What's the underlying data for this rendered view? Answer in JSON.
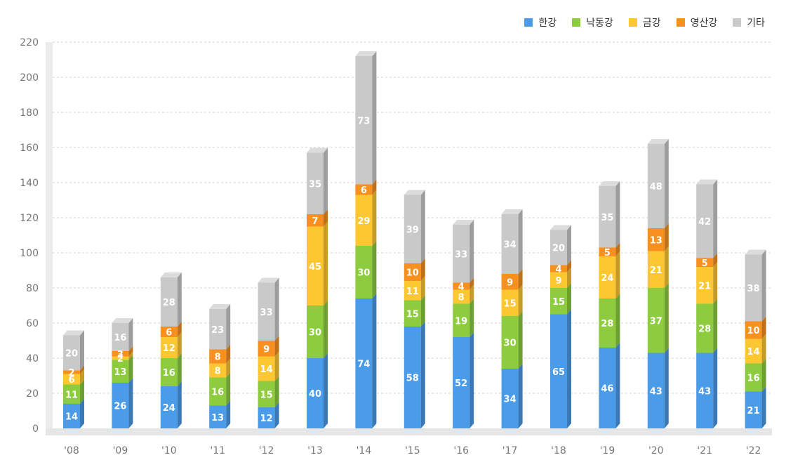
{
  "chart_data": {
    "type": "bar",
    "stacked": true,
    "categories": [
      "'08",
      "'09",
      "'10",
      "'11",
      "'12",
      "'13",
      "'14",
      "'15",
      "'16",
      "'17",
      "'18",
      "'19",
      "'20",
      "'21",
      "'22"
    ],
    "series": [
      {
        "name": "한강",
        "color": "#4a9be8",
        "values": [
          14,
          26,
          24,
          13,
          12,
          40,
          74,
          58,
          52,
          34,
          65,
          46,
          43,
          43,
          21
        ]
      },
      {
        "name": "낙동강",
        "color": "#8dcc3f",
        "values": [
          11,
          13,
          16,
          16,
          15,
          30,
          30,
          15,
          19,
          30,
          15,
          28,
          37,
          28,
          16
        ]
      },
      {
        "name": "금강",
        "color": "#fcc731",
        "values": [
          6,
          2,
          12,
          8,
          14,
          45,
          29,
          11,
          8,
          15,
          9,
          24,
          21,
          21,
          14
        ]
      },
      {
        "name": "영산강",
        "color": "#f7901e",
        "values": [
          2,
          3,
          6,
          8,
          9,
          7,
          6,
          10,
          4,
          9,
          4,
          5,
          13,
          5,
          10
        ]
      },
      {
        "name": "기타",
        "color": "#c9c9c9",
        "values": [
          20,
          16,
          28,
          23,
          33,
          35,
          73,
          39,
          33,
          34,
          20,
          35,
          48,
          42,
          38
        ]
      }
    ],
    "ylim": [
      0,
      220
    ],
    "yticks": [
      0,
      20,
      40,
      60,
      80,
      100,
      120,
      140,
      160,
      180,
      200,
      220
    ],
    "grid": true,
    "legend": "top-right"
  }
}
